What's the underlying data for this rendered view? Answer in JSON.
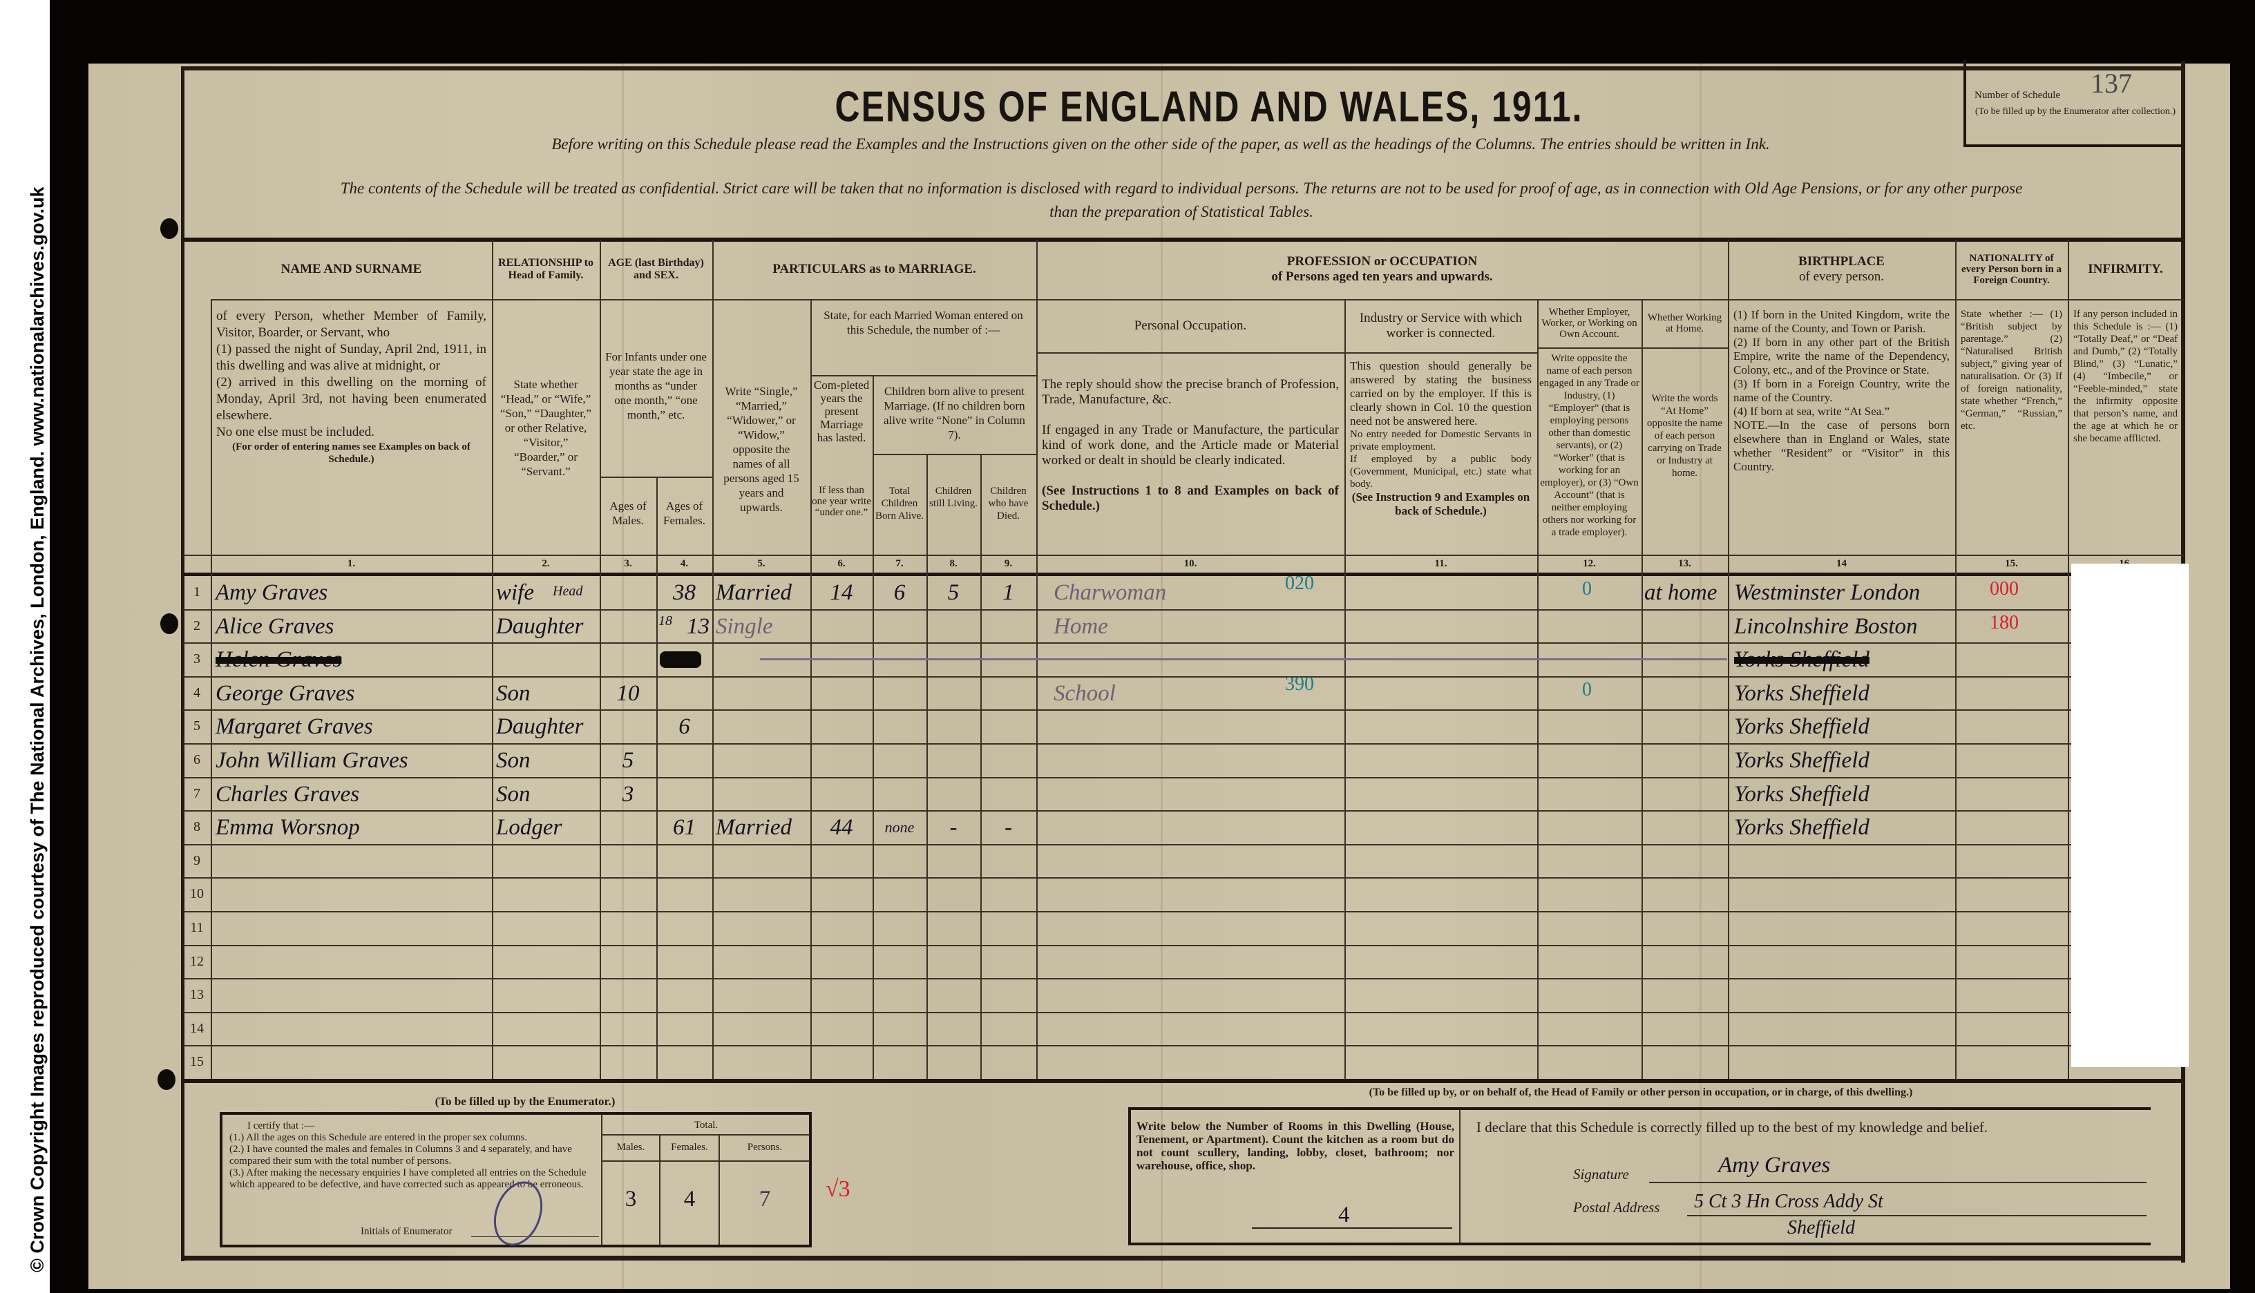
{
  "watermark": "© Crown Copyright Images reproduced courtesy of The National Archives, London, England. www.nationalarchives.gov.uk",
  "form": {
    "title": "CENSUS OF ENGLAND AND WALES, 1911.",
    "instruction": "Before writing on this Schedule please read the Examples and the Instructions given on the other side of the paper, as well as the headings of the Columns.  The entries should be written in Ink.",
    "confidential_1": "The contents of the Schedule will be treated as confidential.  Strict care will be taken that no information is disclosed with regard to individual persons.  The returns are not to be used for proof of age, as in connection with Old Age Pensions, or for any other purpose",
    "confidential_2": "than the preparation of Statistical Tables.",
    "schedule_number_label": "Number of Schedule",
    "schedule_number": "137",
    "schedule_number_note": "(To be filled up by the Enumerator after collection.)"
  },
  "headers": {
    "name": {
      "title": "NAME AND SURNAME",
      "desc_1": "of every Person, whether Member of Family, Visitor, Boarder, or Servant, who",
      "desc_2": "(1) passed the night of Sunday, April 2nd, 1911, in this dwelling and was alive at midnight, or",
      "desc_3": "(2) arrived in this dwelling on the morning of Monday, April 3rd, not having been enumerated elsewhere.",
      "desc_4": "No one else must be included.",
      "desc_5": "(For order of entering names see Examples on back of Schedule.)"
    },
    "relationship": {
      "title": "RELATIONSHIP to Head of Family.",
      "desc": "State whether “Head,” or “Wife,” “Son,” “Daughter,” or other Relative, “Visitor,” “Boarder,” or “Servant.”"
    },
    "age": {
      "title": "AGE (last Birthday) and SEX.",
      "desc": "For Infants under one year state the age in months as “under one month,” “one month,” etc.",
      "males": "Ages of Males.",
      "females": "Ages of Females."
    },
    "marriage": {
      "title": "PARTICULARS as to MARRIAGE.",
      "col5": "Write “Single,” “Married,” “Widower,” or “Widow,” opposite the names of all persons aged 15 years and upwards.",
      "married_woman": "State, for each Married Woman entered on this Schedule, the number of :—",
      "col6": "Com-pleted years the present Marriage has lasted.",
      "col6_note": "If less than one year write “under one.”",
      "children": "Children born alive to present Marriage. (If no children born alive write “None” in Column 7).",
      "col7": "Total Children Born Alive.",
      "col8": "Children still Living.",
      "col9": "Children who have Died."
    },
    "profession": {
      "title": "PROFESSION or OCCUPATION",
      "subtitle": "of Persons aged ten years and upwards.",
      "col10": "Personal Occupation.",
      "col10_desc_1": "The reply should show the precise branch of Profession, Trade, Manufacture, &c.",
      "col10_desc_2": "If engaged in any Trade or Manufacture, the particular kind of work done, and the Article made or Material worked or dealt in should be clearly indicated.",
      "col10_desc_3": "(See Instructions 1 to 8 and Examples on back of Schedule.)",
      "col11": "Industry or Service with which worker is connected.",
      "col11_desc_1": "This question should generally be answered by stating the business carried on by the employer. If this is clearly shown in Col. 10 the question need not be answered here.",
      "col11_desc_2": "No entry needed for Domestic Servants in private employment.",
      "col11_desc_3": "If employed by a public body (Government, Municipal, etc.) state what body.",
      "col11_desc_4": "(See Instruction 9 and Examples on back of Schedule.)",
      "col12": "Whether Employer, Worker, or Working on Own Account.",
      "col12_desc": "Write opposite the name of each person engaged in any Trade or Industry, (1) “Employer” (that is employing persons other than domestic servants), or (2) “Worker” (that is working for an employer), or (3) “Own Account” (that is neither employing others nor working for a trade employer).",
      "col13": "Whether Working at Home.",
      "col13_desc": "Write the words “At Home” opposite the name of each person carrying on Trade or Industry at home."
    },
    "birthplace": {
      "title": "BIRTHPLACE",
      "subtitle": "of every person.",
      "desc_1": "(1) If born in the United Kingdom, write the name of the County, and Town or Parish.",
      "desc_2": "(2) If born in any other part of the British Empire, write the name of the Dependency, Colony, etc., and of the Province or State.",
      "desc_3": "(3) If born in a Foreign Country, write the name of the Country.",
      "desc_4": "(4) If born at sea, write “At Sea.”",
      "desc_5": "NOTE.—In the case of persons born elsewhere than in England or Wales, state whether “Resident” or “Visitor” in this Country."
    },
    "nationality": {
      "title": "NATIONALITY of every Person born in a Foreign Country.",
      "desc": "State whether :— (1) “British subject by parentage.” (2) “Naturalised British subject,” giving year of naturalisation. Or (3) If of foreign nationality, state whether “French,” “German,” “Russian,” etc."
    },
    "infirmity": {
      "title": "INFIRMITY.",
      "desc": "If any person included in this Schedule is :— (1) “Totally Deaf,” or “Deaf and Dumb,” (2) “Totally Blind,” (3) “Lunatic,” (4) “Imbecile,” or “Feeble-minded,” state the infirmity opposite that person’s name, and the age at which he or she became afflicted."
    },
    "column_numbers": [
      "1.",
      "2.",
      "3.",
      "4.",
      "5.",
      "6.",
      "7.",
      "8.",
      "9.",
      "10.",
      "11.",
      "12.",
      "13.",
      "14",
      "15.",
      "16."
    ]
  },
  "household": {
    "rows": [
      {
        "num": "1",
        "name": "Amy Graves",
        "relationship_note": "Head",
        "relationship": "wife",
        "male_age": "",
        "female_age": "38",
        "female_age_note": "",
        "marital": "Married",
        "years_married": "14",
        "children_born": "6",
        "children_living": "5",
        "children_died": "1",
        "occupation": "Charwoman",
        "occupation_code": "020",
        "industry": "",
        "employer_code": "0",
        "at_home": "at home",
        "birthplace": "Westminster London",
        "nationality_code": "000",
        "struck": false
      },
      {
        "num": "2",
        "name": "Alice Graves",
        "relationship_note": "",
        "relationship": "Daughter",
        "male_age": "",
        "female_age": "13",
        "female_age_note": "18",
        "marital": "Single",
        "years_married": "",
        "children_born": "",
        "children_living": "",
        "children_died": "",
        "occupation": "Home",
        "occupation_code": "",
        "industry": "",
        "employer_code": "",
        "at_home": "",
        "birthplace": "Lincolnshire Boston",
        "nationality_code": "180",
        "struck": false
      },
      {
        "num": "3",
        "name": "Helen Graves",
        "relationship_note": "",
        "relationship": "",
        "male_age": "",
        "female_age": "",
        "female_age_note": "",
        "marital": "",
        "years_married": "",
        "children_born": "",
        "children_living": "",
        "children_died": "",
        "occupation": "",
        "occupation_code": "",
        "industry": "",
        "employer_code": "",
        "at_home": "",
        "birthplace": "Yorks Sheffield",
        "nationality_code": "",
        "struck": true
      },
      {
        "num": "4",
        "name": "George Graves",
        "relationship_note": "",
        "relationship": "Son",
        "male_age": "10",
        "female_age": "",
        "female_age_note": "",
        "marital": "",
        "years_married": "",
        "children_born": "",
        "children_living": "",
        "children_died": "",
        "occupation": "School",
        "occupation_code": "390",
        "industry": "",
        "employer_code": "0",
        "at_home": "",
        "birthplace": "Yorks Sheffield",
        "nationality_code": "",
        "struck": false
      },
      {
        "num": "5",
        "name": "Margaret Graves",
        "relationship_note": "",
        "relationship": "Daughter",
        "male_age": "",
        "female_age": "6",
        "female_age_note": "",
        "marital": "",
        "years_married": "",
        "children_born": "",
        "children_living": "",
        "children_died": "",
        "occupation": "",
        "occupation_code": "",
        "industry": "",
        "employer_code": "",
        "at_home": "",
        "birthplace": "Yorks Sheffield",
        "nationality_code": "",
        "struck": false
      },
      {
        "num": "6",
        "name": "John William Graves",
        "relationship_note": "",
        "relationship": "Son",
        "male_age": "5",
        "female_age": "",
        "female_age_note": "",
        "marital": "",
        "years_married": "",
        "children_born": "",
        "children_living": "",
        "children_died": "",
        "occupation": "",
        "occupation_code": "",
        "industry": "",
        "employer_code": "",
        "at_home": "",
        "birthplace": "Yorks Sheffield",
        "nationality_code": "",
        "struck": false
      },
      {
        "num": "7",
        "name": "Charles Graves",
        "relationship_note": "",
        "relationship": "Son",
        "male_age": "3",
        "female_age": "",
        "female_age_note": "",
        "marital": "",
        "years_married": "",
        "children_born": "",
        "children_living": "",
        "children_died": "",
        "occupation": "",
        "occupation_code": "",
        "industry": "",
        "employer_code": "",
        "at_home": "",
        "birthplace": "Yorks Sheffield",
        "nationality_code": "",
        "struck": false
      },
      {
        "num": "8",
        "name": "Emma Worsnop",
        "relationship_note": "",
        "relationship": "Lodger",
        "male_age": "",
        "female_age": "61",
        "female_age_note": "",
        "marital": "Married",
        "years_married": "44",
        "children_born": "none",
        "children_living": "-",
        "children_died": "-",
        "occupation": "",
        "occupation_code": "",
        "industry": "",
        "employer_code": "",
        "at_home": "",
        "birthplace": "Yorks Sheffield",
        "nationality_code": "",
        "struck": false
      },
      {
        "num": "9"
      },
      {
        "num": "10"
      },
      {
        "num": "11"
      },
      {
        "num": "12"
      },
      {
        "num": "13"
      },
      {
        "num": "14"
      },
      {
        "num": "15"
      }
    ]
  },
  "enumerator": {
    "heading": "(To be filled up by the Enumerator.)",
    "certify": "I certify that :—",
    "item_1": "(1.) All the ages on this Schedule are entered in the proper sex columns.",
    "item_2": "(2.) I have counted the males and females in Columns 3 and 4 separately, and have compared their sum with the total number of persons.",
    "item_3": "(3.) After making the necessary enquiries I have completed all entries on the Schedule which appeared to be defective, and have corrected such as appeared to be erroneous.",
    "initials_label": "Initials of Enumerator",
    "total_label": "Total.",
    "males_label": "Males.",
    "females_label": "Females.",
    "persons_label": "Persons.",
    "males": "3",
    "females": "4",
    "persons": "7",
    "check_mark": "√3"
  },
  "head_of_family": {
    "heading": "(To be filled up by, or on behalf of, the Head of Family or other person in occupation, or in charge, of this dwelling.)",
    "rooms_instruction": "Write below the Number of Rooms in this Dwelling (House, Tenement, or Apartment). Count the kitchen as a room but do not count scullery, landing, lobby, closet, bathroom; nor warehouse, office, shop.",
    "rooms": "4",
    "declaration": "I declare that this Schedule is correctly filled up to the best of my knowledge and belief.",
    "signature_label": "Signature",
    "signature": "Amy Graves",
    "address_label": "Postal Address",
    "address_line_1": "5 Ct 3 Hn Cross Addy St",
    "address_line_2": "Sheffield"
  },
  "colors": {
    "paper": "#c9bfa5",
    "ink": "#17131f",
    "pencil": "#6c6272",
    "code_teal": "#1f7c84",
    "code_red": "#d4222a"
  }
}
